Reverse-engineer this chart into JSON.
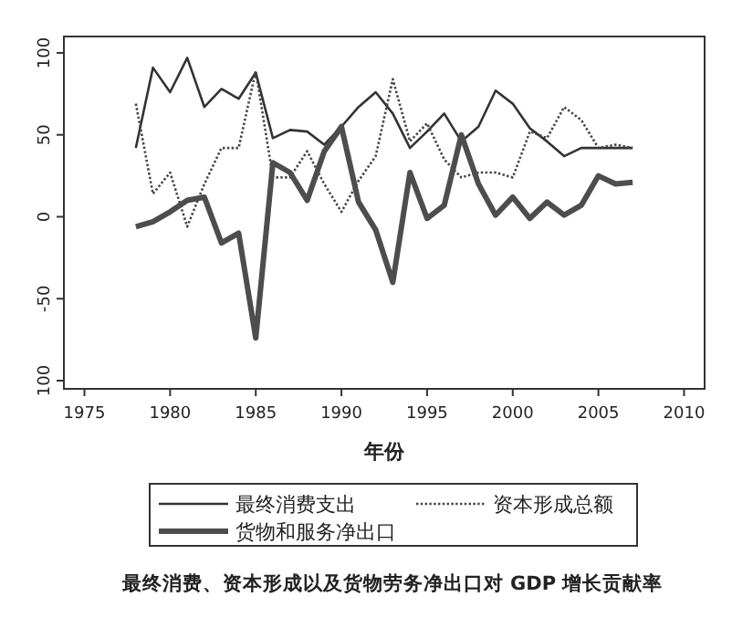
{
  "chart_data": {
    "type": "line",
    "xlabel": "年份",
    "annotations": [
      "最终消费、资本形成以及货物劳务净出口对 GDP 增长贡献率"
    ],
    "x": [
      1978,
      1979,
      1980,
      1981,
      1982,
      1983,
      1984,
      1985,
      1986,
      1987,
      1988,
      1989,
      1990,
      1991,
      1992,
      1993,
      1994,
      1995,
      1996,
      1997,
      1998,
      1999,
      2000,
      2001,
      2002,
      2003,
      2004,
      2005,
      2006,
      2007
    ],
    "series": [
      {
        "name": "最终消费支出",
        "color": "#333333",
        "line_style": "solid",
        "values": [
          42,
          91,
          76,
          97,
          67,
          78,
          72,
          88,
          48,
          53,
          52,
          44,
          55,
          67,
          76,
          63,
          42,
          52,
          63,
          46,
          55,
          77,
          69,
          54,
          46,
          37,
          42,
          42,
          42,
          42
        ]
      },
      {
        "name": "资本形成总额",
        "color": "#444444",
        "line_style": "dotted",
        "values": [
          69,
          14,
          27,
          -6,
          20,
          42,
          42,
          89,
          24,
          24,
          40,
          20,
          3,
          22,
          37,
          84,
          46,
          57,
          35,
          24,
          27,
          27,
          24,
          52,
          48,
          67,
          59,
          42,
          44,
          42
        ]
      },
      {
        "name": "货物和服务净出口",
        "color": "#4d4d4d",
        "line_style": "solid",
        "values": [
          -6,
          -3,
          3,
          10,
          12,
          -16,
          -10,
          -74,
          33,
          27,
          10,
          40,
          55,
          9,
          -8,
          -40,
          27,
          -1,
          7,
          50,
          20,
          1,
          12,
          -1,
          9,
          1,
          7,
          25,
          20,
          21
        ]
      }
    ],
    "xlim": [
      1973.8,
      2011.2
    ],
    "xticks": [
      1975,
      1980,
      1985,
      1990,
      1995,
      2000,
      2005,
      2010
    ],
    "ylim": [
      -105,
      110
    ],
    "yticks": [
      {
        "value": -100,
        "label": "100"
      },
      -50,
      0,
      50,
      100
    ],
    "grid": false,
    "legend": "bottom",
    "marker": "none"
  }
}
